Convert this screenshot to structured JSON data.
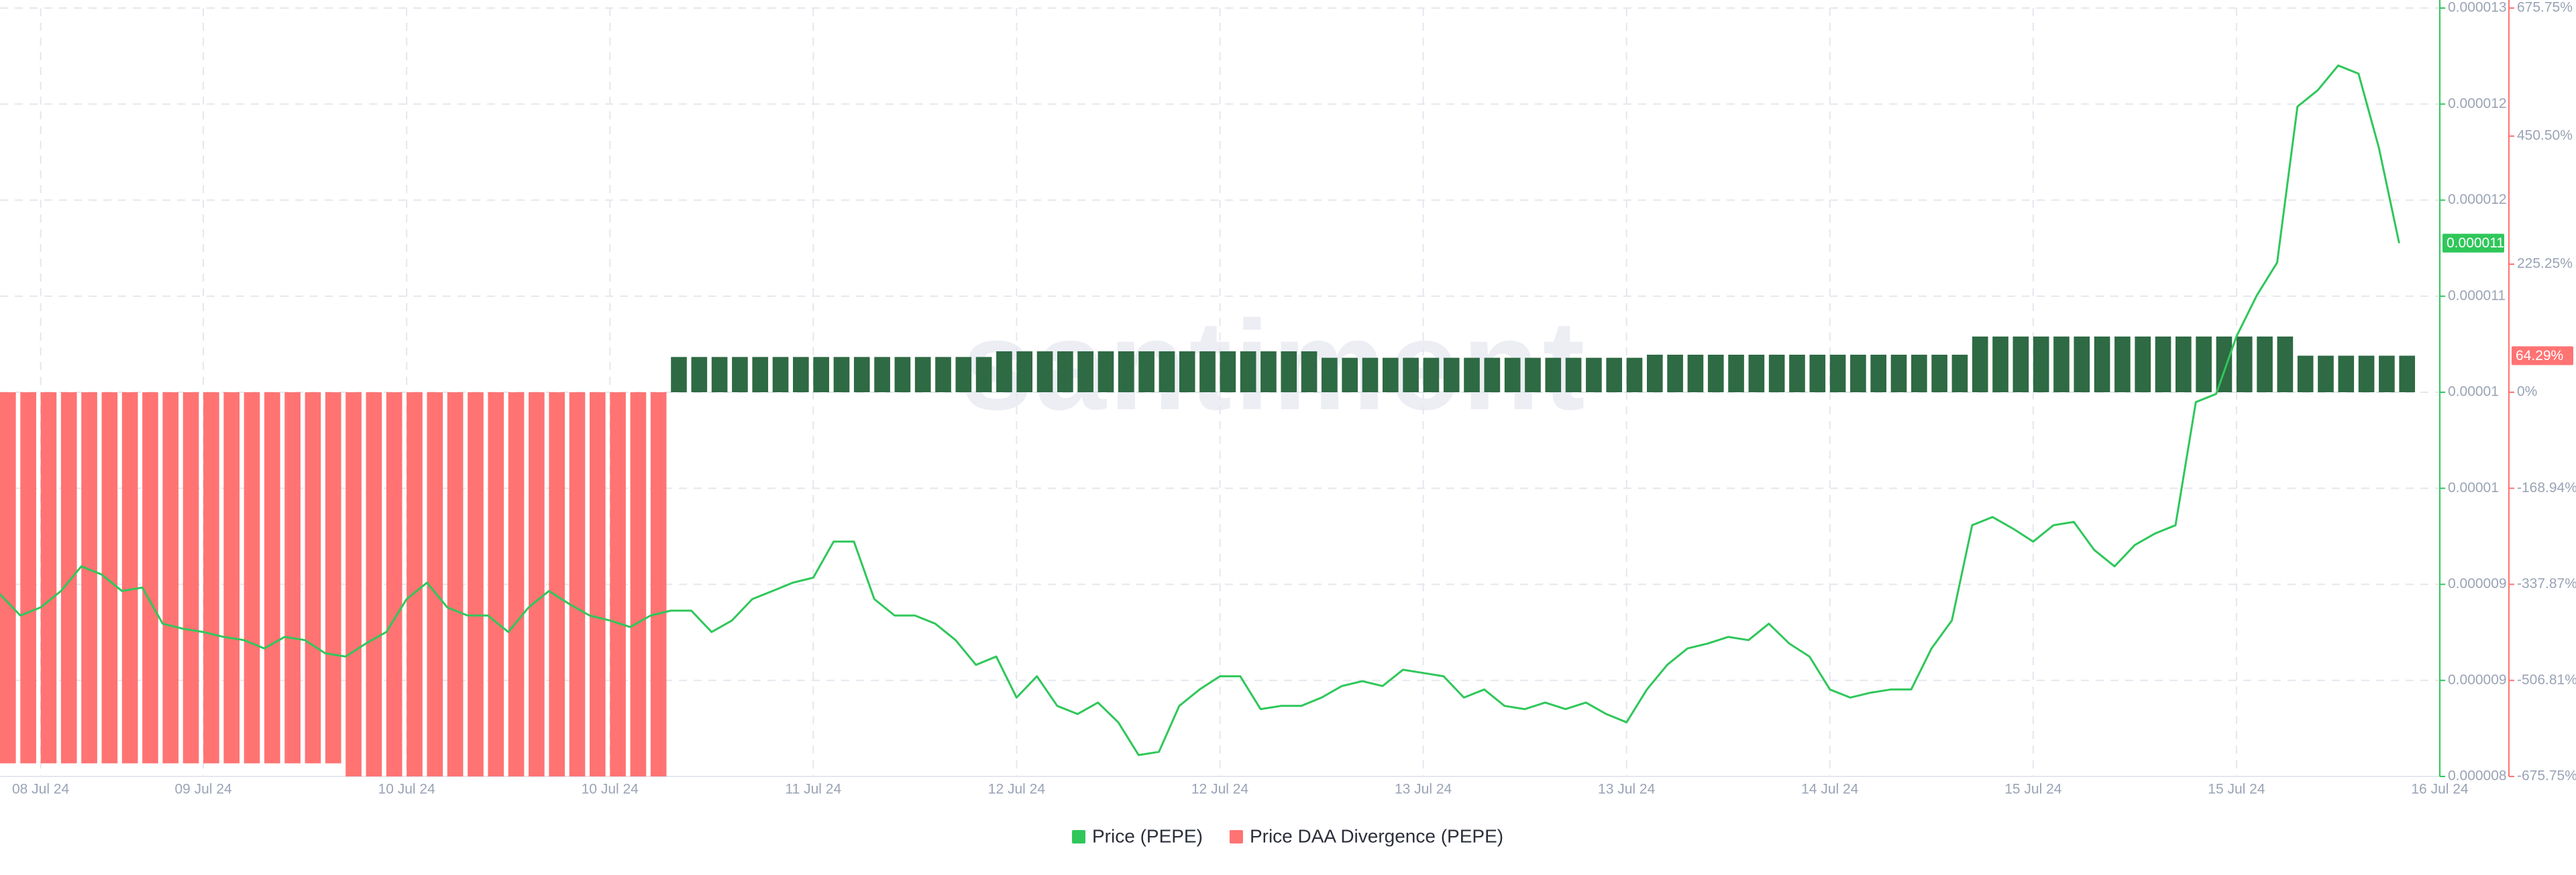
{
  "chart_data": {
    "type": "line",
    "watermark": "santiment",
    "categories": [
      null,
      null,
      "08 Jul 24",
      null,
      null,
      null,
      null,
      null,
      null,
      null,
      "09 Jul 24",
      null,
      null,
      null,
      null,
      null,
      null,
      null,
      null,
      null,
      "10 Jul 24",
      null,
      null,
      null,
      null,
      null,
      null,
      null,
      null,
      null,
      "10 Jul 24",
      null,
      null,
      null,
      null,
      null,
      null,
      null,
      null,
      null,
      "11 Jul 24",
      null,
      null,
      null,
      null,
      null,
      null,
      null,
      null,
      null,
      "12 Jul 24",
      null,
      null,
      null,
      null,
      null,
      null,
      null,
      null,
      null,
      "12 Jul 24",
      null,
      null,
      null,
      null,
      null,
      null,
      null,
      null,
      null,
      "13 Jul 24",
      null,
      null,
      null,
      null,
      null,
      null,
      null,
      null,
      null,
      "13 Jul 24",
      null,
      null,
      null,
      null,
      null,
      null,
      null,
      null,
      null,
      "14 Jul 24",
      null,
      null,
      null,
      null,
      null,
      null,
      null,
      null,
      null,
      "15 Jul 24",
      null,
      null,
      null,
      null,
      null,
      null,
      null,
      null,
      null,
      "15 Jul 24",
      null,
      null,
      null,
      null,
      null,
      null,
      null,
      null,
      null,
      "16 Jul 24"
    ],
    "series": [
      {
        "name": "Price (PEPE)",
        "color": "#2fc75a",
        "axis": "y",
        "values": [
          9.186e-06,
          9.047e-06,
          9.1e-06,
          9.207e-06,
          9.367e-06,
          9.314e-06,
          9.207e-06,
          9.229e-06,
          8.994e-06,
          8.961e-06,
          8.94e-06,
          8.908e-06,
          8.887e-06,
          8.833e-06,
          8.908e-06,
          8.887e-06,
          8.801e-06,
          8.78e-06,
          8.865e-06,
          8.94e-06,
          9.154e-06,
          9.261e-06,
          9.1e-06,
          9.047e-06,
          9.047e-06,
          8.94e-06,
          9.1e-06,
          9.207e-06,
          9.122e-06,
          9.047e-06,
          9.015e-06,
          8.972e-06,
          9.047e-06,
          9.079e-06,
          9.079e-06,
          8.94e-06,
          9.015e-06,
          9.154e-06,
          9.207e-06,
          9.261e-06,
          9.293e-06,
          9.528e-06,
          9.528e-06,
          9.154e-06,
          9.047e-06,
          9.047e-06,
          8.994e-06,
          8.887e-06,
          8.726e-06,
          8.78e-06,
          8.513e-06,
          8.652e-06,
          8.459e-06,
          8.406e-06,
          8.481e-06,
          8.352e-06,
          8.139e-06,
          8.16e-06,
          8.459e-06,
          8.566e-06,
          8.652e-06,
          8.652e-06,
          8.438e-06,
          8.459e-06,
          8.459e-06,
          8.513e-06,
          8.588e-06,
          8.62e-06,
          8.588e-06,
          8.694e-06,
          8.673e-06,
          8.652e-06,
          8.513e-06,
          8.566e-06,
          8.459e-06,
          8.438e-06,
          8.481e-06,
          8.438e-06,
          8.481e-06,
          8.406e-06,
          8.352e-06,
          8.566e-06,
          8.726e-06,
          8.833e-06,
          8.865e-06,
          8.908e-06,
          8.887e-06,
          8.994e-06,
          8.865e-06,
          8.78e-06,
          8.566e-06,
          8.513e-06,
          8.545e-06,
          8.566e-06,
          8.566e-06,
          8.833e-06,
          9.015e-06,
          9.635e-06,
          9.688e-06,
          9.613e-06,
          9.528e-06,
          9.635e-06,
          9.656e-06,
          9.474e-06,
          9.367e-06,
          9.506e-06,
          9.581e-06,
          9.635e-06,
          1.0436e-05,
          1.0489e-05,
          1.0863e-05,
          1.113e-05,
          1.1344e-05,
          1.2359e-05,
          1.2466e-05,
          1.2626e-05,
          1.2573e-05,
          1.2092e-05,
          1.147e-05,
          null,
          null
        ],
        "value_labels": [
          null,
          null,
          null,
          null,
          null,
          null,
          null,
          null,
          null,
          null,
          null,
          null,
          null,
          null,
          null,
          null,
          null,
          null,
          null,
          null,
          null,
          null,
          null,
          null,
          null,
          null,
          null,
          null,
          null,
          null,
          null,
          null,
          null,
          null,
          null,
          null,
          null,
          null,
          null,
          null,
          null,
          null,
          null,
          null,
          null,
          null,
          null,
          null,
          null,
          null,
          null,
          null,
          null,
          null,
          null,
          null,
          null,
          null,
          null,
          null,
          null,
          null,
          null,
          null,
          null,
          null,
          null,
          null,
          null,
          null,
          null,
          null,
          null,
          null,
          null,
          null,
          null,
          null,
          null,
          null,
          null,
          null,
          null,
          null,
          null,
          null,
          null,
          null,
          null,
          null,
          null,
          null,
          null,
          null,
          null,
          null,
          null,
          null,
          null,
          null,
          null,
          null,
          null,
          null,
          null,
          null,
          null,
          null,
          null,
          null,
          null,
          null,
          null,
          null,
          null,
          null,
          null,
          null,
          "0.000011",
          null,
          null
        ]
      },
      {
        "name": "Price DAA Divergence (PEPE)",
        "color": "#ff7373",
        "positive_color": "#2e6a43",
        "axis": "y2",
        "type": "bar",
        "values": [
          -652.7,
          -652.7,
          -652.7,
          -652.7,
          -652.7,
          -652.7,
          -652.7,
          -652.7,
          -652.7,
          -652.7,
          -652.7,
          -652.7,
          -652.7,
          -652.7,
          -652.7,
          -652.7,
          -652.7,
          -675.75,
          -675.75,
          -675.75,
          -675.75,
          -675.75,
          -675.75,
          -675.75,
          -675.75,
          -675.75,
          -675.75,
          -675.75,
          -675.75,
          -675.75,
          -675.75,
          -675.75,
          -675.75,
          62,
          62,
          62,
          62,
          62,
          62,
          62,
          62,
          62,
          62,
          62,
          62,
          62,
          62,
          62,
          62,
          72,
          72,
          72,
          72,
          72,
          72,
          72,
          72,
          72,
          72,
          72,
          72,
          72,
          72,
          72,
          72,
          60.6,
          60.6,
          60.6,
          60.6,
          60.6,
          60.6,
          60.6,
          60.6,
          60.6,
          60.6,
          60.6,
          60.6,
          60.6,
          60.6,
          60.6,
          60.6,
          66,
          66,
          66,
          66,
          66,
          66,
          66,
          66,
          66,
          66,
          66,
          66,
          66,
          66,
          66,
          66,
          98,
          98,
          98,
          98,
          98,
          98,
          98,
          98,
          98,
          98,
          98,
          98,
          98,
          98,
          98,
          98,
          64.29,
          64.29,
          64.29,
          64.29,
          64.29,
          64.29,
          null,
          null
        ],
        "value_labels": [
          null,
          null,
          null,
          null,
          null,
          null,
          null,
          null,
          null,
          null,
          null,
          null,
          null,
          null,
          null,
          null,
          null,
          null,
          null,
          null,
          null,
          null,
          null,
          null,
          null,
          null,
          null,
          null,
          null,
          null,
          null,
          null,
          null,
          null,
          null,
          null,
          null,
          null,
          null,
          null,
          null,
          null,
          null,
          null,
          null,
          null,
          null,
          null,
          null,
          null,
          null,
          null,
          null,
          null,
          null,
          null,
          null,
          null,
          null,
          null,
          null,
          null,
          null,
          null,
          null,
          null,
          null,
          null,
          null,
          null,
          null,
          null,
          null,
          null,
          null,
          null,
          null,
          null,
          null,
          null,
          null,
          null,
          null,
          null,
          null,
          null,
          null,
          null,
          null,
          null,
          null,
          null,
          null,
          null,
          null,
          null,
          null,
          null,
          null,
          null,
          null,
          null,
          null,
          null,
          null,
          null,
          null,
          null,
          null,
          null,
          null,
          null,
          null,
          null,
          null,
          null,
          null,
          null,
          "64.29%",
          null,
          null
        ]
      }
    ],
    "ylim": [
      8e-06,
      1.3e-05
    ],
    "yticks": [
      {
        "value": 8e-06,
        "label": "0.000008"
      },
      {
        "value": 8.625e-06,
        "label": "0.000009"
      },
      {
        "value": 9.25e-06,
        "label": "0.000009"
      },
      {
        "value": 9.875e-06,
        "label": "0.00001"
      },
      {
        "value": 1.05e-05,
        "label": "0.00001"
      },
      {
        "value": 1.1125e-05,
        "label": "0.000011"
      },
      {
        "value": 1.175e-05,
        "label": "0.000012"
      },
      {
        "value": 1.2375e-05,
        "label": "0.000012"
      },
      {
        "value": 1.3e-05,
        "label": "0.000013"
      }
    ],
    "y2lim": [
      -675.75,
      675.75
    ],
    "y2ticks": [
      {
        "value": -675.75,
        "label": "-675.75%"
      },
      {
        "value": -506.81,
        "label": "-506.81%"
      },
      {
        "value": -337.87,
        "label": "-337.87%"
      },
      {
        "value": -168.94,
        "label": "-168.94%"
      },
      {
        "value": 0,
        "label": "0%"
      },
      {
        "value": 225.25,
        "label": "225.25%"
      },
      {
        "value": 450.5,
        "label": "450.50%"
      },
      {
        "value": 675.75,
        "label": "675.75%"
      }
    ],
    "grid": true
  }
}
